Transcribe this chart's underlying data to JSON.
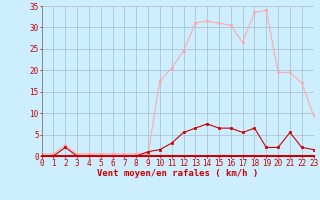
{
  "x": [
    0,
    1,
    2,
    3,
    4,
    5,
    6,
    7,
    8,
    9,
    10,
    11,
    12,
    13,
    14,
    15,
    16,
    17,
    18,
    19,
    20,
    21,
    22,
    23
  ],
  "y_mean": [
    0,
    0,
    2,
    0,
    0,
    0,
    0,
    0,
    0,
    1,
    1.5,
    3,
    5.5,
    6.5,
    7.5,
    6.5,
    6.5,
    5.5,
    6.5,
    2,
    2,
    5.5,
    2,
    1.5
  ],
  "y_gust": [
    0.5,
    0.5,
    2.5,
    0.5,
    0.5,
    0.5,
    0.5,
    0.5,
    0.5,
    0.5,
    17.5,
    20.5,
    24.5,
    31,
    31.5,
    31,
    30.5,
    26.5,
    33.5,
    34,
    19.5,
    19.5,
    17,
    9.5
  ],
  "color_mean": "#cc0000",
  "color_gust": "#ffaaaa",
  "bg_color": "#cceeff",
  "grid_color": "#aabbcc",
  "axis_color": "#cc0000",
  "xlabel": "Vent moyen/en rafales ( km/h )",
  "ylim": [
    0,
    35
  ],
  "xlim": [
    0,
    23
  ],
  "yticks": [
    0,
    5,
    10,
    15,
    20,
    25,
    30,
    35
  ],
  "xticks": [
    0,
    1,
    2,
    3,
    4,
    5,
    6,
    7,
    8,
    9,
    10,
    11,
    12,
    13,
    14,
    15,
    16,
    17,
    18,
    19,
    20,
    21,
    22,
    23
  ],
  "tick_fontsize": 5.5,
  "xlabel_fontsize": 6.5
}
